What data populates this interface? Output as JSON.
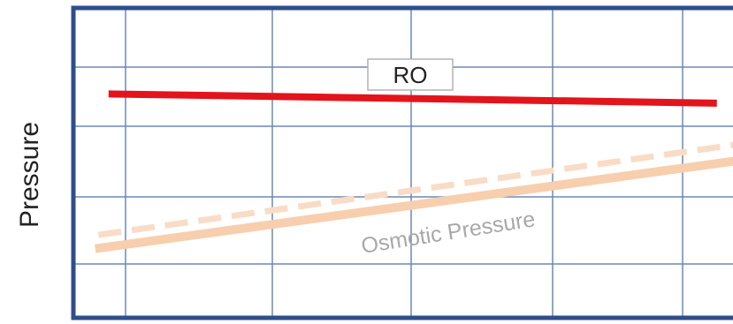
{
  "chart_data": {
    "type": "line",
    "title": "",
    "xlabel": "",
    "ylabel": "Pressure",
    "grid": true,
    "xlim": [
      0,
      10
    ],
    "ylim": [
      0,
      10
    ],
    "series": [
      {
        "name": "RO",
        "color": "#e3141c",
        "style": "solid",
        "points": [
          [
            0.5,
            7.25
          ],
          [
            9.6,
            6.95
          ]
        ]
      },
      {
        "name": "Osmotic Pressure",
        "color": "#f7cfae",
        "style": "solid",
        "points": [
          [
            0.3,
            2.2
          ],
          [
            10.0,
            5.1
          ]
        ]
      },
      {
        "name": "",
        "color": "#f9dcc6",
        "style": "dashed",
        "points": [
          [
            0.35,
            2.65
          ],
          [
            9.9,
            5.6
          ]
        ]
      }
    ],
    "annotations": {
      "ro_label": "RO",
      "osmotic_label": "Osmotic Pressure"
    }
  },
  "colors": {
    "frame": "#2e4e8c",
    "grid": "#6b88b8"
  }
}
